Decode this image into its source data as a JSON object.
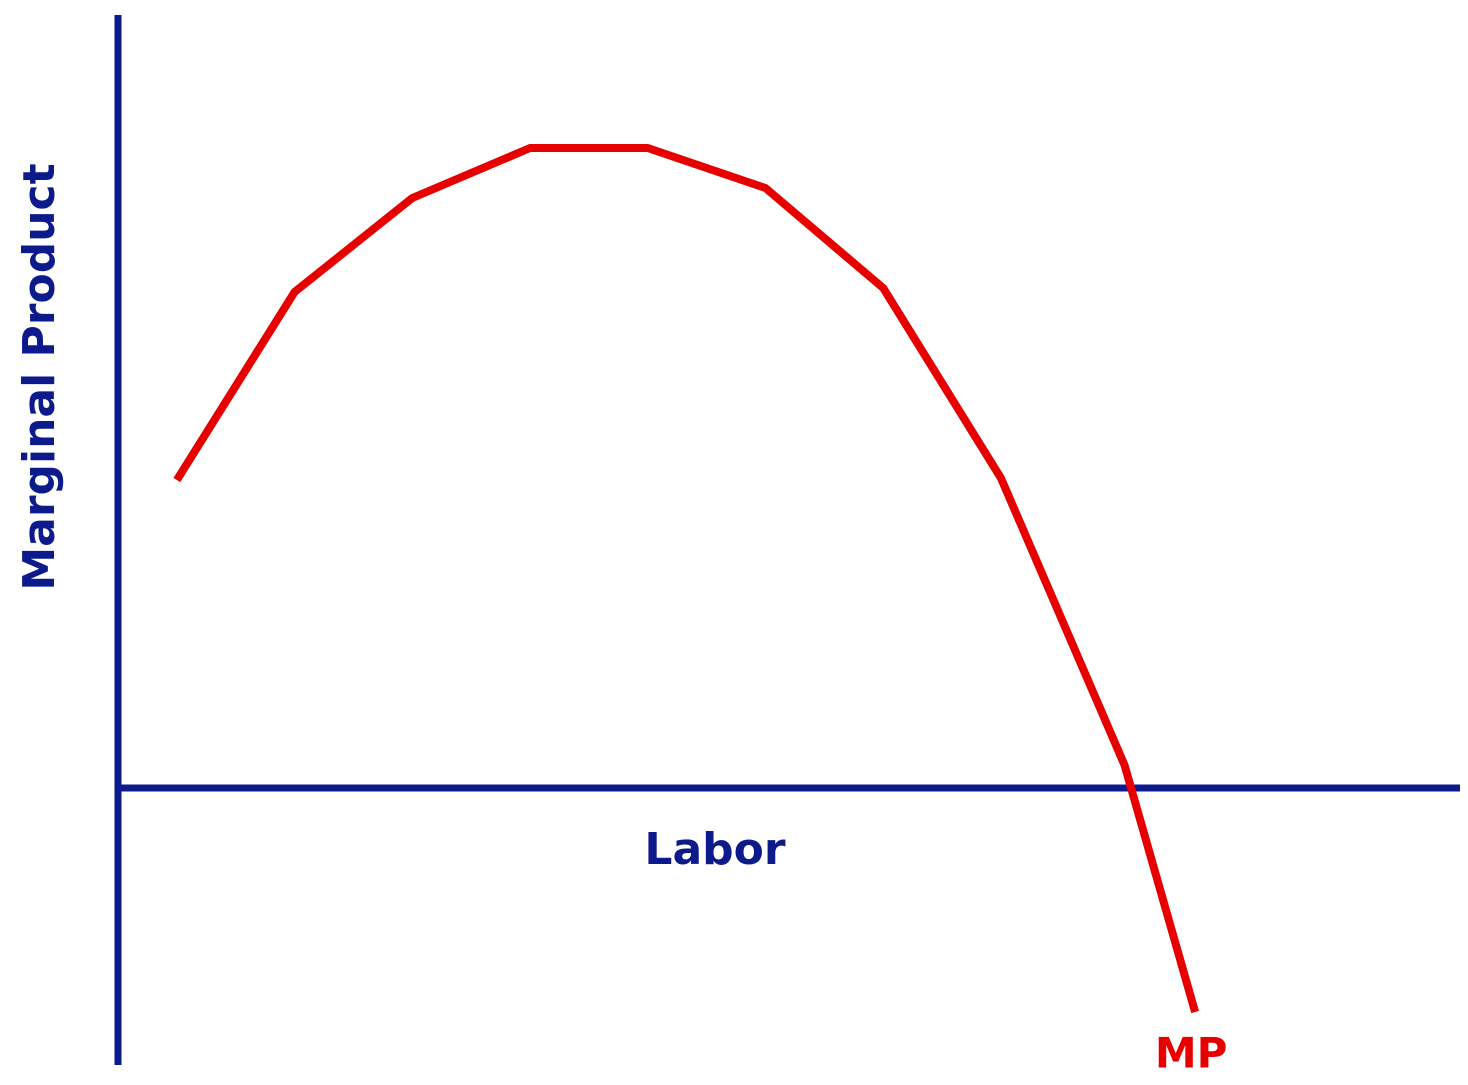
{
  "chart_data": {
    "type": "line",
    "y_label": "Marginal Product",
    "x_label": "Labor",
    "x": [
      0.5,
      1.5,
      2.5,
      3.5,
      4.5,
      5.5,
      6.5,
      7.5,
      8.55,
      9.15
    ],
    "series": [
      {
        "name": "MP",
        "color": "#e60000",
        "values": [
          3.08,
          4.96,
          5.9,
          6.4,
          6.4,
          6.0,
          5.0,
          3.1,
          0.23,
          -2.24
        ]
      }
    ],
    "xlim": [
      0,
      11.4
    ],
    "ylim": [
      -2.77,
      7.73
    ],
    "axis_color": "#0d1a8c"
  }
}
